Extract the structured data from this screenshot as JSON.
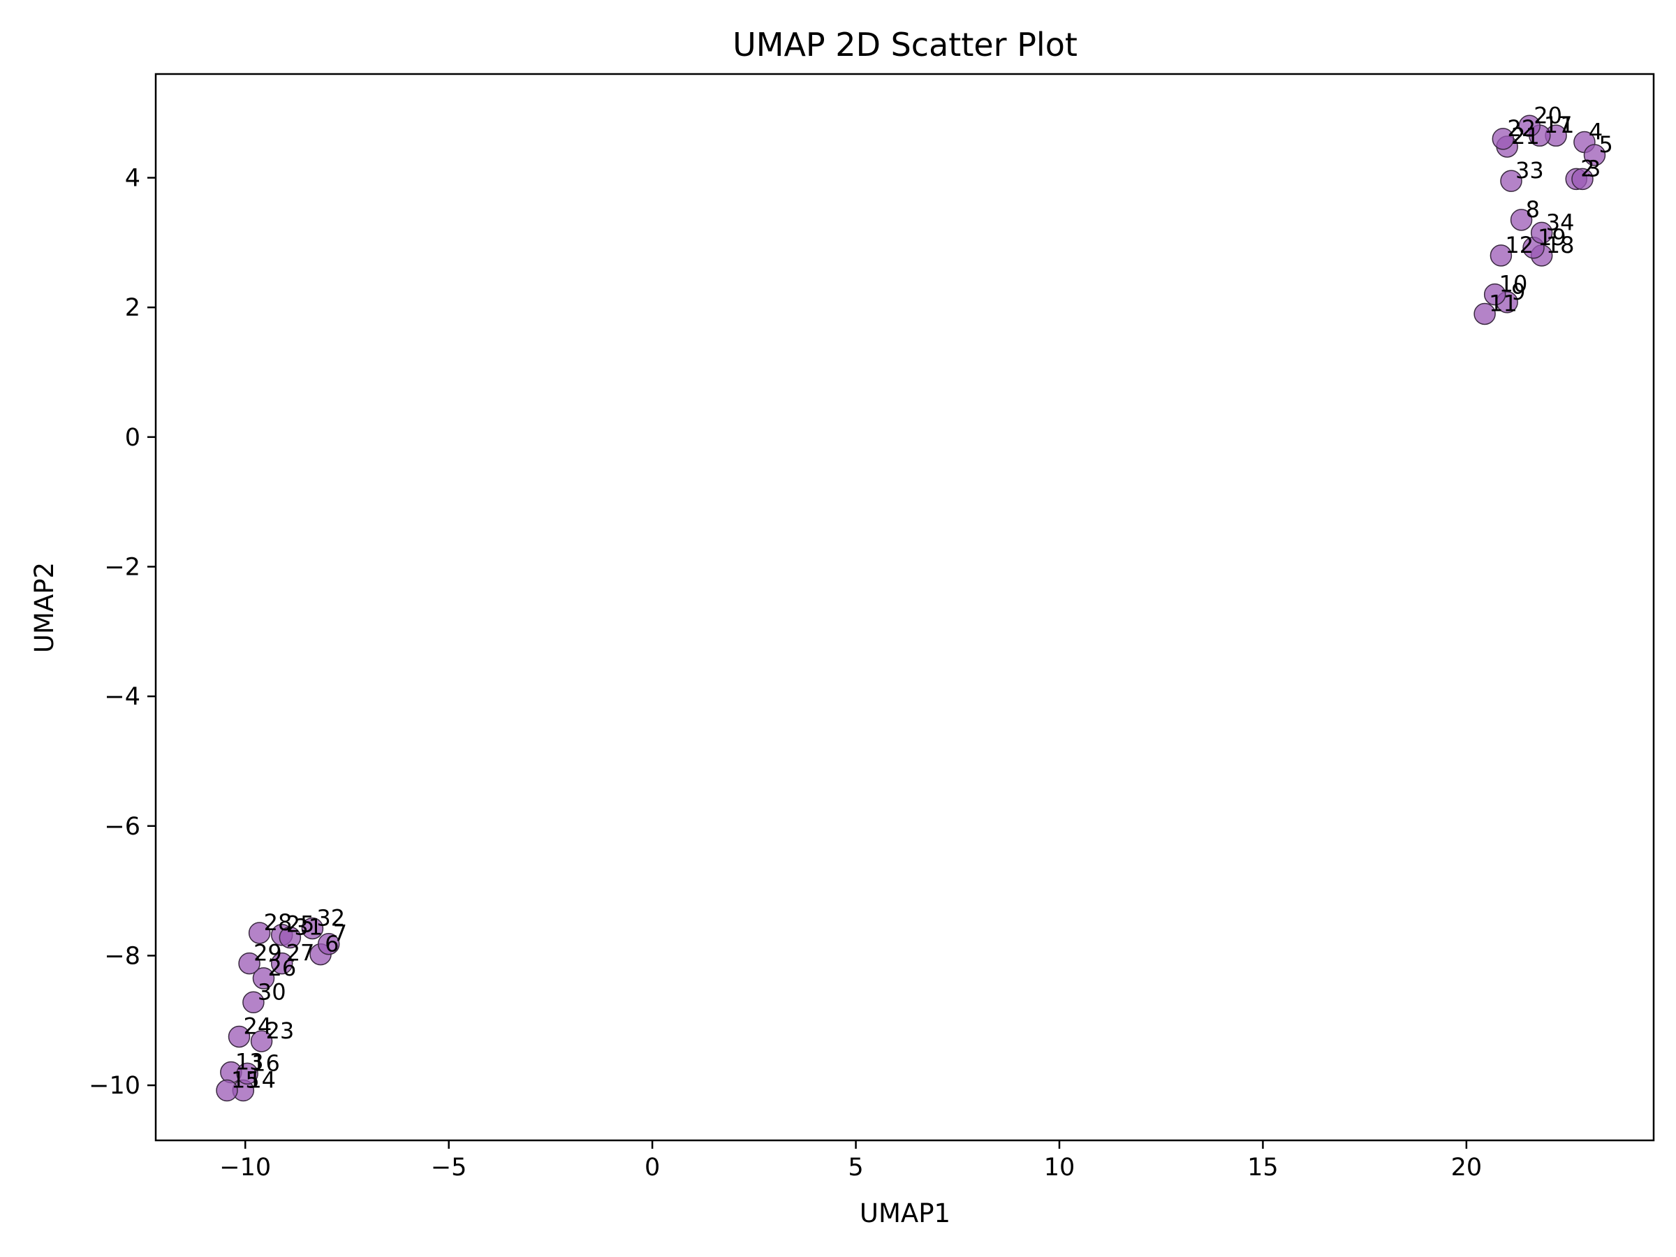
{
  "chart_data": {
    "type": "scatter",
    "title": "UMAP 2D Scatter Plot",
    "xlabel": "UMAP1",
    "ylabel": "UMAP2",
    "xlim": [
      -12.2,
      24.6
    ],
    "ylim": [
      -10.85,
      5.6
    ],
    "xticks": [
      -10,
      -5,
      0,
      5,
      10,
      15,
      20
    ],
    "xtick_labels": [
      "−10",
      "−5",
      "0",
      "5",
      "10",
      "15",
      "20"
    ],
    "yticks": [
      -10,
      -8,
      -6,
      -4,
      -2,
      0,
      2,
      4
    ],
    "ytick_labels": [
      "−10",
      "−8",
      "−6",
      "−4",
      "−2",
      "0",
      "2",
      "4"
    ],
    "grid": false,
    "marker_color": "#9b59b6",
    "marker_edge_color": "#3a2a40",
    "points": [
      {
        "label": "1",
        "x": 22.2,
        "y": 4.65
      },
      {
        "label": "2",
        "x": 22.7,
        "y": 3.98
      },
      {
        "label": "3",
        "x": 22.85,
        "y": 3.98
      },
      {
        "label": "4",
        "x": 22.9,
        "y": 4.55
      },
      {
        "label": "5",
        "x": 23.15,
        "y": 4.35
      },
      {
        "label": "6",
        "x": -8.15,
        "y": -7.98
      },
      {
        "label": "7",
        "x": -7.95,
        "y": -7.82
      },
      {
        "label": "8",
        "x": 21.35,
        "y": 3.35
      },
      {
        "label": "9",
        "x": 21.0,
        "y": 2.08
      },
      {
        "label": "10",
        "x": 20.7,
        "y": 2.2
      },
      {
        "label": "11",
        "x": 20.45,
        "y": 1.9
      },
      {
        "label": "12",
        "x": 20.85,
        "y": 2.8
      },
      {
        "label": "13",
        "x": -10.35,
        "y": -9.8
      },
      {
        "label": "14",
        "x": -10.05,
        "y": -10.08
      },
      {
        "label": "15",
        "x": -10.45,
        "y": -10.08
      },
      {
        "label": "16",
        "x": -9.95,
        "y": -9.82
      },
      {
        "label": "17",
        "x": 21.8,
        "y": 4.65
      },
      {
        "label": "18",
        "x": 21.85,
        "y": 2.8
      },
      {
        "label": "19",
        "x": 21.65,
        "y": 2.92
      },
      {
        "label": "20",
        "x": 21.55,
        "y": 4.8
      },
      {
        "label": "21",
        "x": 21.0,
        "y": 4.48
      },
      {
        "label": "22",
        "x": 20.9,
        "y": 4.6
      },
      {
        "label": "23",
        "x": -9.6,
        "y": -9.32
      },
      {
        "label": "24",
        "x": -10.15,
        "y": -9.25
      },
      {
        "label": "25",
        "x": -9.1,
        "y": -7.68
      },
      {
        "label": "26",
        "x": -9.55,
        "y": -8.35
      },
      {
        "label": "27",
        "x": -9.1,
        "y": -8.12
      },
      {
        "label": "28",
        "x": -9.65,
        "y": -7.65
      },
      {
        "label": "29",
        "x": -9.9,
        "y": -8.12
      },
      {
        "label": "30",
        "x": -9.8,
        "y": -8.72
      },
      {
        "label": "31",
        "x": -8.9,
        "y": -7.72
      },
      {
        "label": "32",
        "x": -8.35,
        "y": -7.58
      },
      {
        "label": "33",
        "x": 21.1,
        "y": 3.95
      },
      {
        "label": "34",
        "x": 21.85,
        "y": 3.15
      }
    ]
  }
}
